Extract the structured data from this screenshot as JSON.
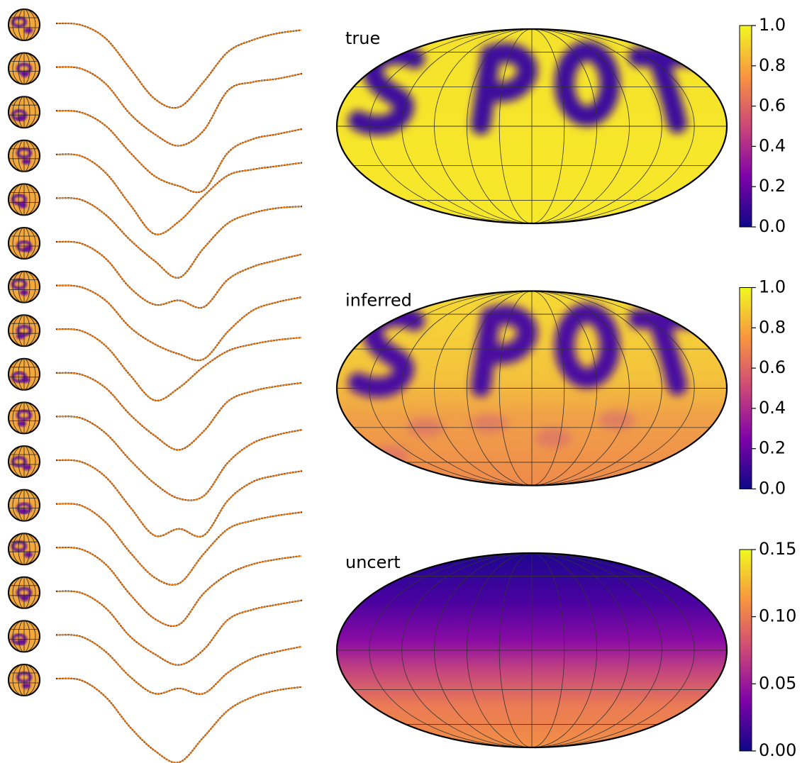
{
  "chart_data": [
    {
      "type": "lightcurves",
      "model_color": "#ff7f0e",
      "data_color": "#000000",
      "x": [
        0,
        0.1,
        0.2,
        0.3,
        0.4,
        0.5,
        0.6,
        0.7,
        0.8,
        0.9,
        1.0
      ],
      "series": [
        {
          "values": [
            1,
            0.98,
            0.82,
            0.46,
            0.1,
            0,
            0.3,
            0.66,
            0.8,
            0.88,
            0.92
          ]
        },
        {
          "values": [
            1,
            0.98,
            0.8,
            0.44,
            0.2,
            0.06,
            0.24,
            0.72,
            0.82,
            0.86,
            0.92
          ]
        },
        {
          "values": [
            1,
            0.98,
            0.82,
            0.5,
            0.22,
            0.1,
            0.05,
            0.5,
            0.66,
            0.72,
            0.78
          ]
        },
        {
          "values": [
            1,
            0.98,
            0.78,
            0.4,
            0.05,
            0.2,
            0.5,
            0.75,
            0.82,
            0.86,
            0.9
          ]
        },
        {
          "values": [
            1,
            0.98,
            0.8,
            0.5,
            0.25,
            0.05,
            0.4,
            0.7,
            0.82,
            0.88,
            0.9
          ]
        },
        {
          "values": [
            1,
            0.98,
            0.8,
            0.45,
            0.25,
            0.3,
            0.22,
            0.55,
            0.7,
            0.78,
            0.85
          ]
        },
        {
          "values": [
            1,
            0.98,
            0.82,
            0.5,
            0.3,
            0.18,
            0.12,
            0.45,
            0.7,
            0.8,
            0.86
          ]
        },
        {
          "values": [
            1,
            0.98,
            0.8,
            0.45,
            0.15,
            0.3,
            0.55,
            0.74,
            0.82,
            0.87,
            0.9
          ]
        },
        {
          "values": [
            1,
            0.98,
            0.82,
            0.5,
            0.25,
            0.08,
            0.3,
            0.66,
            0.78,
            0.84,
            0.88
          ]
        },
        {
          "values": [
            1,
            0.98,
            0.8,
            0.48,
            0.2,
            0.02,
            0.05,
            0.45,
            0.68,
            0.78,
            0.84
          ]
        },
        {
          "values": [
            1,
            0.98,
            0.8,
            0.44,
            0.1,
            0.18,
            0.1,
            0.52,
            0.74,
            0.82,
            0.87
          ]
        },
        {
          "values": [
            1,
            0.98,
            0.78,
            0.42,
            0.12,
            0.05,
            0.4,
            0.7,
            0.8,
            0.86,
            0.9
          ]
        },
        {
          "values": [
            1,
            0.98,
            0.8,
            0.44,
            0.15,
            0.08,
            0.45,
            0.68,
            0.8,
            0.86,
            0.9
          ]
        },
        {
          "values": [
            1,
            0.98,
            0.8,
            0.46,
            0.25,
            0.12,
            0.3,
            0.66,
            0.78,
            0.84,
            0.89
          ]
        },
        {
          "values": [
            1,
            0.98,
            0.8,
            0.5,
            0.3,
            0.36,
            0.3,
            0.55,
            0.72,
            0.8,
            0.86
          ]
        },
        {
          "values": [
            1,
            0.98,
            0.78,
            0.42,
            0.14,
            0,
            0.3,
            0.62,
            0.78,
            0.86,
            0.9
          ]
        }
      ]
    },
    {
      "type": "map",
      "title": "true",
      "style": "true",
      "clim": [
        0,
        1
      ],
      "cticks": [
        {
          "value": 0,
          "label": "0.0"
        },
        0.2,
        0.4,
        0.6,
        0.8,
        {
          "value": 1,
          "label": "1.0"
        }
      ]
    },
    {
      "type": "map",
      "title": "inferred",
      "style": "inferred",
      "clim": [
        0,
        1
      ],
      "cticks": [
        {
          "value": 0,
          "label": "0.0"
        },
        0.2,
        0.4,
        0.6,
        0.8,
        {
          "value": 1,
          "label": "1.0"
        }
      ]
    },
    {
      "type": "map",
      "title": "uncert",
      "style": "uncert",
      "clim": [
        0,
        0.15
      ],
      "cticks": [
        {
          "value": 0,
          "label": "0.00"
        },
        {
          "value": 0.05,
          "label": "0.05"
        },
        {
          "value": 0.1,
          "label": "0.10"
        },
        {
          "value": 0.15,
          "label": "0.15"
        }
      ]
    }
  ]
}
